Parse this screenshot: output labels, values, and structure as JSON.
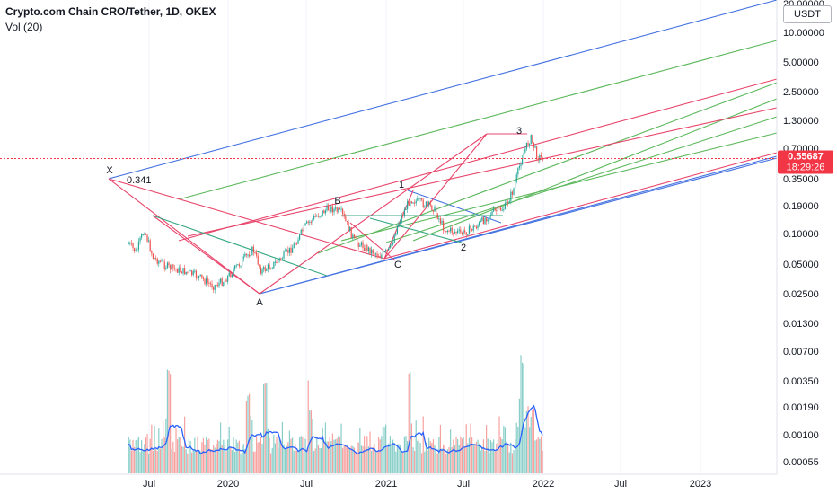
{
  "header": {
    "title": "Crypto.com Chain CRO/Tether, 1D, OKEX",
    "indicator": "Vol (20)"
  },
  "price_axis": {
    "unit": "USDT",
    "current_price": "0.55687",
    "countdown": "18:29:26",
    "price_ticks": [
      "20.00000",
      "10.00000",
      "5.00000",
      "2.50000",
      "1.30000",
      "0.70000",
      "0.35000",
      "0.19000",
      "0.10000",
      "0.05000",
      "0.02500",
      "0.01300"
    ],
    "volume_ticks": [
      "0.00700",
      "0.00350",
      "0.00190",
      "0.00100",
      "0.00055"
    ]
  },
  "colors": {
    "up": "#26a69a",
    "down": "#ef5350",
    "blue_line": "#4472e0",
    "green_line": "#5cb85c",
    "pink_line": "#e8456b",
    "teal_line": "#35a882",
    "volume_ma": "#2962ff",
    "price_label_bg": "#f23645"
  },
  "chart_data": {
    "type": "line",
    "title": "Crypto.com Chain CRO/Tether, 1D, OKEX",
    "xlabel": "",
    "ylabel": "",
    "y_scale": "log",
    "x_ticks": [
      "Jul",
      "2020",
      "Jul",
      "2021",
      "Jul",
      "2022",
      "Jul",
      "2023"
    ],
    "series": [
      {
        "values": [
          {
            "date": "2019-05-15",
            "close": 0.08
          },
          {
            "date": "2019-06-01",
            "close": 0.065
          },
          {
            "date": "2019-06-20",
            "close": 0.11
          },
          {
            "date": "2019-07-10",
            "close": 0.058
          },
          {
            "date": "2019-08-15",
            "close": 0.046
          },
          {
            "date": "2019-09-20",
            "close": 0.042
          },
          {
            "date": "2019-10-20",
            "close": 0.038
          },
          {
            "date": "2019-11-25",
            "close": 0.03
          },
          {
            "date": "2019-12-20",
            "close": 0.034
          },
          {
            "date": "2020-01-25",
            "close": 0.05
          },
          {
            "date": "2020-02-25",
            "close": 0.07
          },
          {
            "date": "2020-03-15",
            "close": 0.042
          },
          {
            "date": "2020-04-20",
            "close": 0.052
          },
          {
            "date": "2020-05-25",
            "close": 0.072
          },
          {
            "date": "2020-06-25",
            "close": 0.12
          },
          {
            "date": "2020-07-20",
            "close": 0.15
          },
          {
            "date": "2020-08-20",
            "close": 0.18
          },
          {
            "date": "2020-09-15",
            "close": 0.16
          },
          {
            "date": "2020-10-15",
            "close": 0.085
          },
          {
            "date": "2020-11-15",
            "close": 0.07
          },
          {
            "date": "2020-12-15",
            "close": 0.06
          },
          {
            "date": "2021-01-05",
            "close": 0.07
          },
          {
            "date": "2021-01-25",
            "close": 0.13
          },
          {
            "date": "2021-02-20",
            "close": 0.22
          },
          {
            "date": "2021-03-20",
            "close": 0.2
          },
          {
            "date": "2021-04-15",
            "close": 0.18
          },
          {
            "date": "2021-05-10",
            "close": 0.11
          },
          {
            "date": "2021-06-20",
            "close": 0.1
          },
          {
            "date": "2021-07-25",
            "close": 0.12
          },
          {
            "date": "2021-08-25",
            "close": 0.16
          },
          {
            "date": "2021-09-25",
            "close": 0.18
          },
          {
            "date": "2021-10-15",
            "close": 0.27
          },
          {
            "date": "2021-11-05",
            "close": 0.6
          },
          {
            "date": "2021-11-24",
            "close": 0.9
          },
          {
            "date": "2021-12-10",
            "close": 0.58
          },
          {
            "date": "2021-12-22",
            "close": 0.55687
          }
        ]
      }
    ],
    "annotations": [
      {
        "label": "X",
        "value": "0.341"
      },
      {
        "label": "A"
      },
      {
        "label": "B"
      },
      {
        "label": "C"
      },
      {
        "label": "1"
      },
      {
        "label": "2"
      },
      {
        "label": "3"
      }
    ],
    "volume_panel": {
      "indicator": "Vol (20)",
      "axis_ticks": [
        "0.00700",
        "0.00350",
        "0.00190",
        "0.00100",
        "0.00055"
      ]
    }
  }
}
